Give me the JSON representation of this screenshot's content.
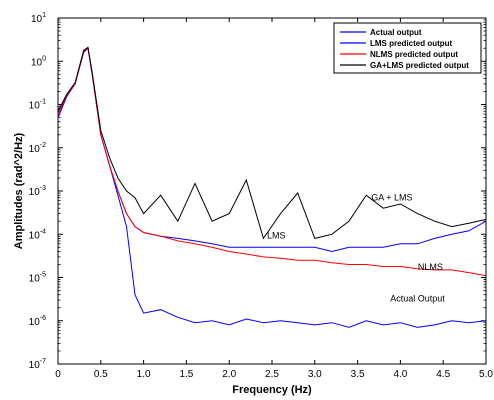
{
  "chart_data": {
    "type": "line",
    "title": "",
    "xlabel": "Frequency (Hz)",
    "ylabel": "Amplitudes (rad^2/Hz)",
    "xlim": [
      0,
      5
    ],
    "ylim_exp": [
      -7,
      1
    ],
    "yscale": "log",
    "grid": false,
    "legend_position": "top-right",
    "x_ticks": [
      "0",
      "0.5",
      "1.0",
      "1.5",
      "2.0",
      "2.5",
      "3.0",
      "3.5",
      "4.0",
      "4.5",
      "5.0"
    ],
    "y_ticks": [
      {
        "base": "10",
        "exp": "-7"
      },
      {
        "base": "10",
        "exp": "-6"
      },
      {
        "base": "10",
        "exp": "-5"
      },
      {
        "base": "10",
        "exp": "-4"
      },
      {
        "base": "10",
        "exp": "-3"
      },
      {
        "base": "10",
        "exp": "-2"
      },
      {
        "base": "10",
        "exp": "-1"
      },
      {
        "base": "10",
        "exp": "0"
      },
      {
        "base": "10",
        "exp": "1"
      }
    ],
    "x": [
      0,
      0.1,
      0.2,
      0.3,
      0.35,
      0.4,
      0.5,
      0.6,
      0.7,
      0.8,
      0.9,
      1.0,
      1.2,
      1.4,
      1.6,
      1.8,
      2.0,
      2.2,
      2.4,
      2.6,
      2.8,
      3.0,
      3.2,
      3.4,
      3.6,
      3.8,
      4.0,
      4.2,
      4.4,
      4.6,
      4.8,
      5.0
    ],
    "series": [
      {
        "name": "Actual output",
        "color": "#0000ff",
        "values": [
          0.05,
          0.15,
          0.3,
          1.6,
          2.0,
          0.5,
          0.02,
          0.004,
          0.0008,
          0.00015,
          4e-06,
          1.5e-06,
          1.8e-06,
          1.2e-06,
          9e-07,
          1e-06,
          8e-07,
          1.1e-06,
          9e-07,
          1e-06,
          9e-07,
          8e-07,
          9e-07,
          7e-07,
          1e-06,
          8e-07,
          9e-07,
          7e-07,
          8e-07,
          1e-06,
          9e-07,
          1e-06
        ]
      },
      {
        "name": "LMS predicted output",
        "color": "#0000ff",
        "values": [
          0.06,
          0.16,
          0.3,
          1.7,
          2.0,
          0.5,
          0.02,
          0.004,
          0.001,
          0.0003,
          0.00015,
          0.00011,
          9e-05,
          8e-05,
          7e-05,
          6e-05,
          5e-05,
          5e-05,
          5e-05,
          5e-05,
          5e-05,
          5e-05,
          4e-05,
          5e-05,
          5e-05,
          5e-05,
          6e-05,
          6e-05,
          8e-05,
          0.0001,
          0.00012,
          0.0002
        ]
      },
      {
        "name": "NLMS predicted output",
        "color": "#ff0000",
        "values": [
          0.06,
          0.16,
          0.3,
          1.7,
          2.0,
          0.5,
          0.02,
          0.004,
          0.001,
          0.0003,
          0.00015,
          0.00011,
          9e-05,
          7e-05,
          6e-05,
          5e-05,
          4e-05,
          3.5e-05,
          3e-05,
          2.8e-05,
          2.5e-05,
          2.5e-05,
          2.2e-05,
          2e-05,
          2e-05,
          1.8e-05,
          1.8e-05,
          1.6e-05,
          1.5e-05,
          1.5e-05,
          1.3e-05,
          1.1e-05
        ]
      },
      {
        "name": "GA+LMS predicted output",
        "color": "#000000",
        "values": [
          0.07,
          0.17,
          0.32,
          1.8,
          2.1,
          0.55,
          0.025,
          0.006,
          0.002,
          0.001,
          0.0007,
          0.0003,
          0.0008,
          0.0002,
          0.0015,
          0.0002,
          0.0003,
          0.0018,
          8e-05,
          0.0003,
          0.0009,
          8e-05,
          0.0001,
          0.0002,
          0.0008,
          0.0004,
          0.0005,
          0.0003,
          0.0002,
          0.00015,
          0.00018,
          0.00022
        ]
      }
    ],
    "annotations": [
      {
        "text": "GA + LMS",
        "x": 3.9,
        "y": 0.0006
      },
      {
        "text": "LMS",
        "x": 2.55,
        "y": 8e-05
      },
      {
        "text": "NLMS",
        "x": 4.35,
        "y": 1.5e-05
      },
      {
        "text": "Actual Output",
        "x": 4.2,
        "y": 2.8e-06
      }
    ]
  }
}
